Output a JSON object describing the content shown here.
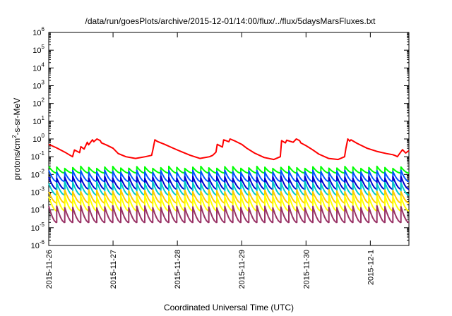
{
  "chart_data": {
    "type": "line",
    "title": "/data/run/goesPlots/archive/2015-12-01/14:00/flux/../flux/5daysMarsFluxes.txt",
    "xlabel": "Coordinated Universal Time (UTC)",
    "ylabel": "protons/cm²-s-sr-MeV",
    "ylabel_parts": {
      "before": "protons/cm",
      "sup": "2",
      "after": "-s-sr-MeV"
    },
    "log_scale_y": true,
    "grid": false,
    "x_tick_labels": [
      "2015-11-26",
      "2015-11-27",
      "2015-11-28",
      "2015-11-29",
      "2015-11-30",
      "2015-12-1"
    ],
    "xlim_days": [
      0,
      5.6
    ],
    "y_ticks": [
      {
        "base": "10",
        "exp": "-6"
      },
      {
        "base": "10",
        "exp": "-5"
      },
      {
        "base": "10",
        "exp": "-4"
      },
      {
        "base": "10",
        "exp": "-3"
      },
      {
        "base": "10",
        "exp": "-2"
      },
      {
        "base": "10",
        "exp": "-1"
      },
      {
        "base": "10",
        "exp": "0"
      },
      {
        "base": "10",
        "exp": "1"
      },
      {
        "base": "10",
        "exp": "2"
      },
      {
        "base": "10",
        "exp": "3"
      },
      {
        "base": "10",
        "exp": "4"
      },
      {
        "base": "10",
        "exp": "5"
      },
      {
        "base": "10",
        "exp": "6"
      }
    ],
    "ylim": [
      1e-06,
      1000000.0
    ],
    "series": [
      {
        "color": "#ff0000",
        "x": [
          0.0,
          0.12,
          0.25,
          0.37,
          0.4,
          0.48,
          0.5,
          0.55,
          0.6,
          0.62,
          0.68,
          0.7,
          0.75,
          0.8,
          0.82,
          0.9,
          1.0,
          1.08,
          1.2,
          1.35,
          1.5,
          1.6,
          1.62,
          1.65,
          1.68,
          1.7,
          1.8,
          1.92,
          2.05,
          2.2,
          2.35,
          2.5,
          2.55,
          2.6,
          2.62,
          2.7,
          2.72,
          2.8,
          2.82,
          2.9,
          3.0,
          3.08,
          3.2,
          3.35,
          3.5,
          3.6,
          3.62,
          3.68,
          3.7,
          3.8,
          3.85,
          3.9,
          3.92,
          4.0,
          4.1,
          4.2,
          4.35,
          4.5,
          4.6,
          4.62,
          4.65,
          4.68,
          4.7,
          4.8,
          4.95,
          5.1,
          5.25,
          5.35,
          5.4,
          5.42,
          5.5,
          5.55,
          5.6
        ],
        "y": [
          0.5,
          0.32,
          0.18,
          0.1,
          0.24,
          0.17,
          0.37,
          0.27,
          0.65,
          0.47,
          0.9,
          0.7,
          1.0,
          0.8,
          0.6,
          0.45,
          0.3,
          0.15,
          0.1,
          0.08,
          0.1,
          0.12,
          0.25,
          0.9,
          0.75,
          0.7,
          0.5,
          0.32,
          0.2,
          0.12,
          0.08,
          0.1,
          0.12,
          0.18,
          0.5,
          0.35,
          0.9,
          0.7,
          1.0,
          0.75,
          0.5,
          0.3,
          0.16,
          0.09,
          0.07,
          0.1,
          0.8,
          0.6,
          0.85,
          0.65,
          1.0,
          0.8,
          0.6,
          0.42,
          0.25,
          0.14,
          0.08,
          0.07,
          0.1,
          0.3,
          1.0,
          0.75,
          0.9,
          0.55,
          0.3,
          0.2,
          0.15,
          0.13,
          0.11,
          0.1,
          0.25,
          0.16,
          0.22
        ]
      },
      {
        "color": "#00ff00",
        "pattern": "sawtooth",
        "cycles": 45,
        "peak": 0.025,
        "trough": 0.012
      },
      {
        "color": "#0055ff",
        "pattern": "sawtooth",
        "cycles": 45,
        "peak": 0.015,
        "trough": 0.004
      },
      {
        "color": "#0000cc",
        "pattern": "sawtooth",
        "cycles": 45,
        "peak": 0.007,
        "trough": 0.0015
      },
      {
        "color": "#00cccc",
        "pattern": "sawtooth",
        "cycles": 45,
        "peak": 0.0035,
        "trough": 0.0007
      },
      {
        "color": "#ffcc00",
        "pattern": "sawtooth",
        "cycles": 45,
        "peak": 0.0012,
        "trough": 0.00025
      },
      {
        "color": "#ffff00",
        "pattern": "sawtooth",
        "cycles": 45,
        "peak": 0.0006,
        "trough": 9e-05
      },
      {
        "color": "#993366",
        "pattern": "sawtooth",
        "cycles": 45,
        "peak": 0.00015,
        "trough": 2e-05
      }
    ]
  }
}
